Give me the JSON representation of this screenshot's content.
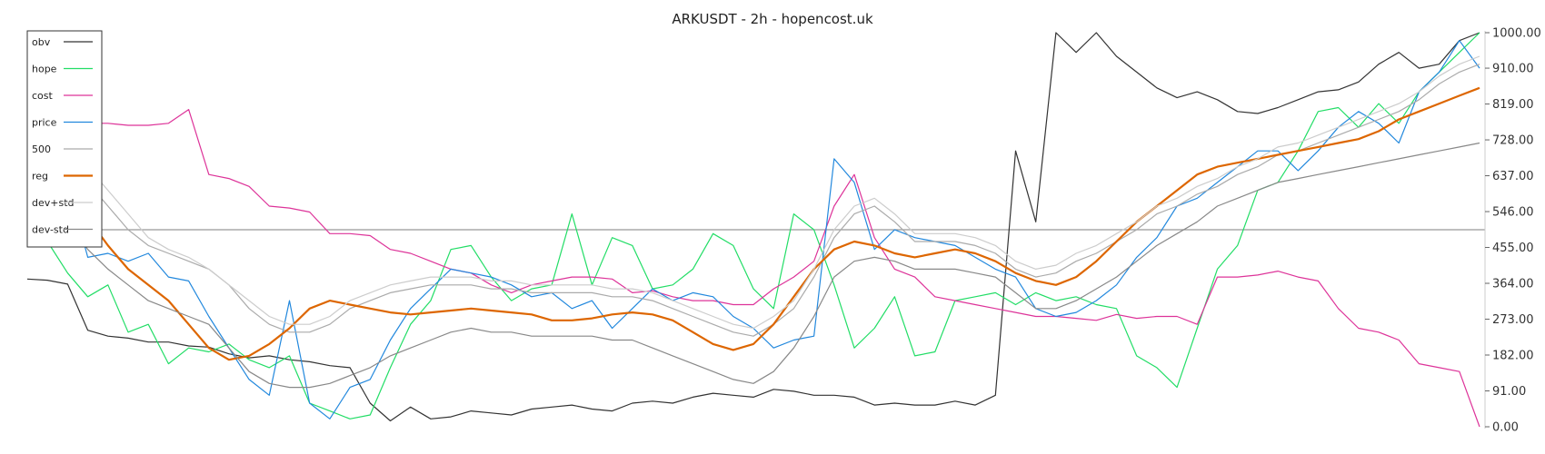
{
  "chart_data": {
    "type": "line",
    "title": "ARKUSDT - 2h - hopencost.uk",
    "xlabel": "",
    "ylabel": "",
    "ylim": [
      0,
      1000
    ],
    "y_ticks": [
      "1000.00",
      "910.00",
      "819.00",
      "728.00",
      "637.00",
      "546.00",
      "455.00",
      "364.00",
      "273.00",
      "182.00",
      "91.00",
      "0.00"
    ],
    "y_tick_values": [
      1000,
      910,
      819,
      728,
      637,
      546,
      455,
      364,
      273,
      182,
      91,
      0
    ],
    "x_count": 73,
    "reference_line": 500,
    "legend_position": "top-left",
    "grid": false,
    "series": [
      {
        "name": "obv",
        "color": "#333333",
        "values": [
          375,
          372,
          362,
          245,
          230,
          225,
          215,
          215,
          205,
          202,
          185,
          175,
          180,
          170,
          165,
          155,
          150,
          60,
          15,
          50,
          20,
          25,
          40,
          35,
          30,
          45,
          50,
          55,
          45,
          40,
          60,
          65,
          60,
          75,
          85,
          80,
          75,
          95,
          90,
          80,
          80,
          75,
          55,
          60,
          55,
          55,
          65,
          55,
          80,
          700,
          520,
          1000,
          950,
          1000,
          940,
          900,
          860,
          835,
          850,
          830,
          800,
          795,
          810,
          830,
          850,
          855,
          875,
          920,
          950,
          910,
          920,
          980,
          1000
        ]
      },
      {
        "name": "hope",
        "color": "#22dd66",
        "values": [
          520,
          470,
          390,
          330,
          360,
          240,
          260,
          160,
          200,
          190,
          210,
          170,
          150,
          180,
          60,
          40,
          20,
          30,
          150,
          260,
          320,
          450,
          460,
          380,
          320,
          350,
          360,
          540,
          360,
          480,
          460,
          350,
          360,
          400,
          490,
          460,
          350,
          300,
          540,
          500,
          360,
          200,
          250,
          330,
          180,
          190,
          320,
          330,
          340,
          310,
          340,
          320,
          330,
          310,
          300,
          180,
          150,
          100,
          250,
          400,
          460,
          600,
          620,
          700,
          800,
          810,
          760,
          820,
          770,
          850,
          900,
          950,
          1000
        ]
      },
      {
        "name": "cost",
        "color": "#dd3399",
        "values": [
          830,
          780,
          770,
          770,
          770,
          765,
          765,
          770,
          805,
          640,
          630,
          610,
          560,
          555,
          545,
          490,
          490,
          485,
          450,
          440,
          420,
          400,
          390,
          360,
          340,
          360,
          370,
          380,
          380,
          375,
          340,
          345,
          330,
          320,
          320,
          310,
          310,
          350,
          380,
          420,
          560,
          640,
          480,
          400,
          380,
          330,
          320,
          310,
          300,
          290,
          280,
          280,
          275,
          270,
          285,
          275,
          280,
          280,
          260,
          380,
          380,
          385,
          395,
          380,
          370,
          300,
          250,
          240,
          220,
          160,
          150,
          140,
          0
        ]
      },
      {
        "name": "price",
        "color": "#2288dd",
        "values": [
          640,
          600,
          620,
          430,
          440,
          420,
          440,
          380,
          370,
          280,
          200,
          120,
          80,
          320,
          60,
          20,
          100,
          120,
          220,
          300,
          350,
          400,
          390,
          380,
          360,
          330,
          340,
          300,
          320,
          250,
          300,
          350,
          320,
          340,
          330,
          280,
          250,
          200,
          220,
          230,
          680,
          620,
          450,
          500,
          480,
          470,
          460,
          430,
          400,
          380,
          300,
          280,
          290,
          320,
          360,
          430,
          480,
          560,
          580,
          620,
          660,
          700,
          700,
          650,
          700,
          760,
          800,
          770,
          720,
          850,
          900,
          980,
          910
        ]
      },
      {
        "name": "500",
        "color": "#aaaaaa",
        "values": [
          730,
          730,
          680,
          620,
          560,
          500,
          460,
          440,
          420,
          400,
          360,
          300,
          260,
          240,
          240,
          260,
          300,
          320,
          340,
          350,
          360,
          360,
          360,
          350,
          350,
          340,
          340,
          340,
          340,
          330,
          330,
          320,
          300,
          280,
          260,
          240,
          230,
          260,
          300,
          380,
          480,
          540,
          560,
          520,
          470,
          470,
          470,
          460,
          440,
          400,
          380,
          390,
          420,
          440,
          470,
          500,
          540,
          560,
          590,
          610,
          640,
          660,
          690,
          700,
          720,
          740,
          760,
          780,
          800,
          830,
          870,
          900,
          920
        ]
      },
      {
        "name": "reg",
        "color": "#dd6600",
        "values": [
          700,
          660,
          590,
          530,
          460,
          400,
          360,
          320,
          260,
          200,
          170,
          180,
          210,
          250,
          300,
          320,
          310,
          300,
          290,
          285,
          290,
          295,
          300,
          295,
          290,
          285,
          270,
          270,
          275,
          285,
          290,
          285,
          270,
          240,
          210,
          195,
          210,
          260,
          330,
          400,
          450,
          470,
          460,
          440,
          430,
          440,
          450,
          440,
          420,
          390,
          370,
          360,
          380,
          420,
          470,
          520,
          560,
          600,
          640,
          660,
          670,
          680,
          690,
          700,
          710,
          720,
          730,
          750,
          780,
          800,
          820,
          840,
          860
        ]
      },
      {
        "name": "dev+std",
        "color": "#cccccc",
        "values": [
          780,
          760,
          720,
          660,
          600,
          540,
          480,
          450,
          430,
          400,
          360,
          320,
          280,
          260,
          260,
          280,
          320,
          340,
          360,
          370,
          380,
          380,
          380,
          370,
          370,
          360,
          360,
          360,
          360,
          350,
          350,
          340,
          320,
          300,
          280,
          260,
          250,
          280,
          320,
          400,
          500,
          560,
          580,
          540,
          490,
          490,
          490,
          480,
          460,
          420,
          400,
          410,
          440,
          460,
          490,
          520,
          560,
          580,
          610,
          630,
          660,
          680,
          710,
          720,
          740,
          760,
          780,
          800,
          820,
          850,
          890,
          920,
          940
        ]
      },
      {
        "name": "dev-std",
        "color": "#888888",
        "values": [
          620,
          580,
          520,
          450,
          400,
          360,
          320,
          300,
          280,
          260,
          200,
          140,
          110,
          100,
          100,
          110,
          130,
          150,
          180,
          200,
          220,
          240,
          250,
          240,
          240,
          230,
          230,
          230,
          230,
          220,
          220,
          200,
          180,
          160,
          140,
          120,
          110,
          140,
          200,
          280,
          380,
          420,
          430,
          420,
          400,
          400,
          400,
          390,
          380,
          340,
          300,
          300,
          320,
          350,
          380,
          420,
          460,
          490,
          520,
          560,
          580,
          600,
          620,
          630,
          640,
          650,
          660,
          670,
          680,
          690,
          700,
          710,
          720
        ]
      }
    ]
  }
}
